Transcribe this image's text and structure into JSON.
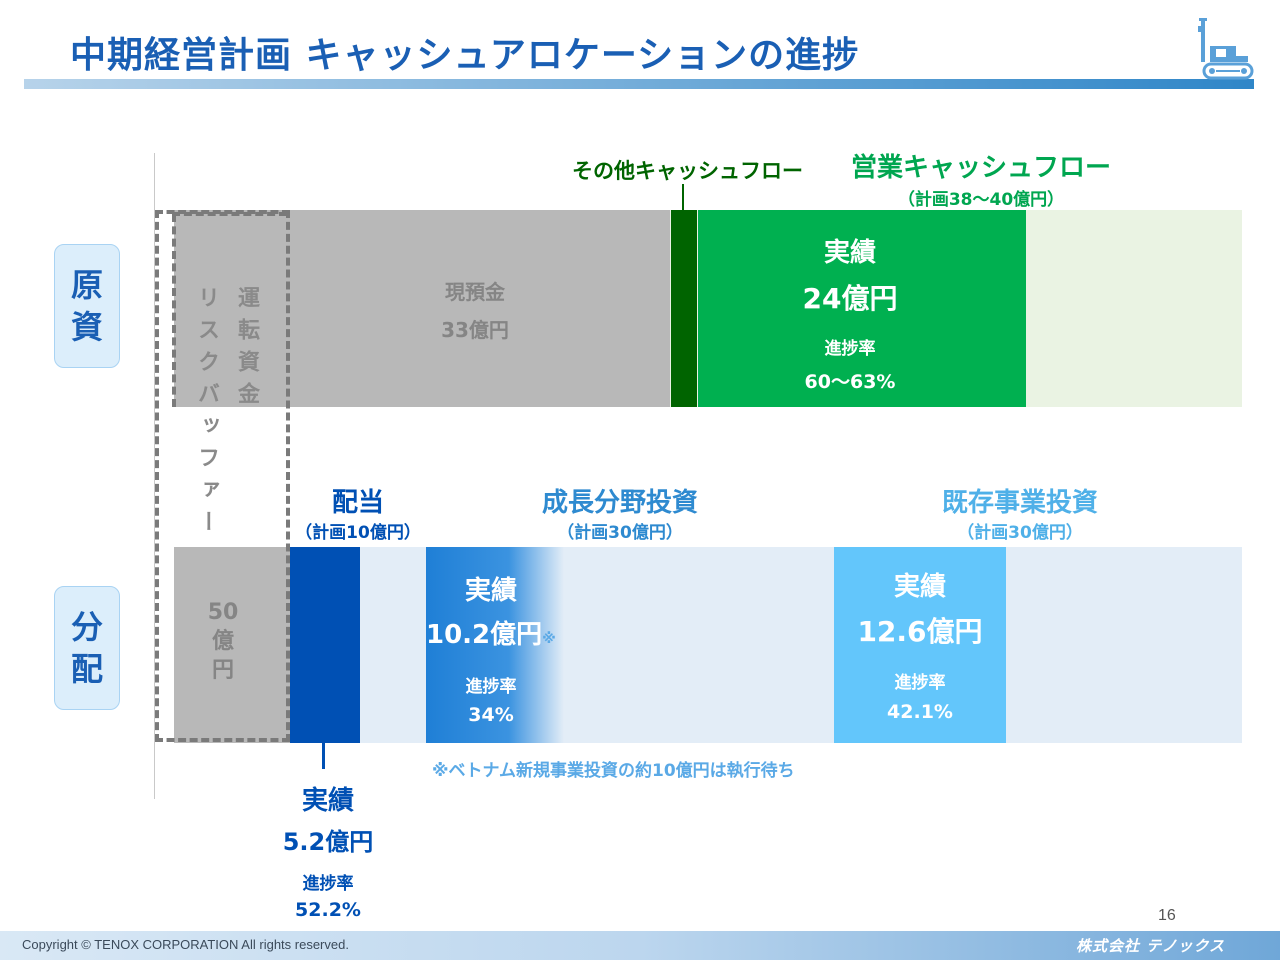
{
  "header": {
    "title": "中期経営計画 キャッシュアロケーションの進捗"
  },
  "rows": {
    "source_label": [
      "原",
      "資"
    ],
    "allocation_label": [
      "分",
      "配"
    ]
  },
  "risk_buffer": {
    "label": "リスクバッファー",
    "working_capital": "運転資金",
    "amount_lines": [
      "50",
      "億",
      "円"
    ]
  },
  "cash": {
    "label": "現預金",
    "amount": "33億円"
  },
  "other_cf": {
    "label": "その他キャッシュフロー"
  },
  "operating_cf": {
    "label": "営業キャッシュフロー",
    "plan": "（計画38～40億円）",
    "actual_label": "実績",
    "actual_value": "24億円",
    "progress_label": "進捗率",
    "progress_value": "60～63%"
  },
  "dividend": {
    "label": "配当",
    "plan": "（計画10億円）",
    "actual_label": "実績",
    "actual_value": "5.2億円",
    "progress_label": "進捗率",
    "progress_value": "52.2%"
  },
  "growth": {
    "label": "成長分野投資",
    "plan": "（計画30億円）",
    "actual_label": "実績",
    "actual_value": "10.2億円",
    "note_mark": "※",
    "progress_label": "進捗率",
    "progress_value": "34%",
    "footnote": "※ベトナム新規事業投資の約10億円は執行待ち"
  },
  "existing": {
    "label": "既存事業投資",
    "plan": "（計画30億円）",
    "actual_label": "実績",
    "actual_value": "12.6億円",
    "progress_label": "進捗率",
    "progress_value": "42.1%"
  },
  "footer": {
    "copyright": "Copyright © TENOX CORPORATION All rights reserved.",
    "company": "株式会社 テノックス",
    "page_number": "16"
  },
  "colors": {
    "title": "#1a5fb4",
    "grey_block": "#b8b8b8",
    "dark_green": "#006400",
    "green": "#00b050",
    "navy": "#0050b4",
    "blue": "#1f7fd6",
    "light_blue": "#63c6fb",
    "growth_label": "#2e8ad0",
    "existing_label": "#4fb0e8"
  }
}
